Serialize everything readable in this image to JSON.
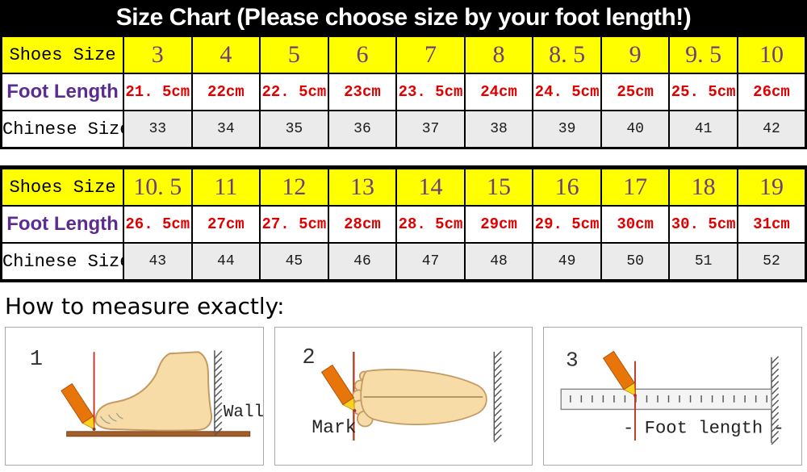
{
  "title": "Size Chart (Please choose size by your foot length!)",
  "chart_data": {
    "type": "table",
    "tables": [
      {
        "rows": [
          {
            "label": "Shoes Size",
            "values": [
              "3",
              "4",
              "5",
              "6",
              "7",
              "8",
              "8. 5",
              "9",
              "9. 5",
              "10"
            ]
          },
          {
            "label": "Foot Length",
            "values": [
              "21. 5cm",
              "22cm",
              "22. 5cm",
              "23cm",
              "23. 5cm",
              "24cm",
              "24. 5cm",
              "25cm",
              "25. 5cm",
              "26cm"
            ]
          },
          {
            "label": "Chinese Size",
            "values": [
              "33",
              "34",
              "35",
              "36",
              "37",
              "38",
              "39",
              "40",
              "41",
              "42"
            ]
          }
        ]
      },
      {
        "rows": [
          {
            "label": "Shoes Size",
            "values": [
              "10. 5",
              "11",
              "12",
              "13",
              "14",
              "15",
              "16",
              "17",
              "18",
              "19"
            ]
          },
          {
            "label": "Foot Length",
            "values": [
              "26. 5cm",
              "27cm",
              "27. 5cm",
              "28cm",
              "28. 5cm",
              "29cm",
              "29. 5cm",
              "30cm",
              "30. 5cm",
              "31cm"
            ]
          },
          {
            "label": "Chinese Size",
            "values": [
              "43",
              "44",
              "45",
              "46",
              "47",
              "48",
              "49",
              "50",
              "51",
              "52"
            ]
          }
        ]
      }
    ]
  },
  "measure": {
    "heading": "How to measure exactly:",
    "steps": [
      {
        "number": "1",
        "label": "Wall"
      },
      {
        "number": "2",
        "label": "Mark"
      },
      {
        "number": "3",
        "label": "- Foot length -"
      }
    ]
  },
  "colors": {
    "header_bg": "#000000",
    "header_text": "#FFFFFF",
    "shoes_row_bg": "#FFFF00",
    "shoes_value_text": "#6B3E7E",
    "foot_label_text": "#5B2D90",
    "foot_value_text": "#E00000",
    "chinese_row_bg": "#EBEBEB",
    "pencil_orange": "#E8750A",
    "skin": "#F8DCA8",
    "floor_brown": "#A35F2B"
  }
}
